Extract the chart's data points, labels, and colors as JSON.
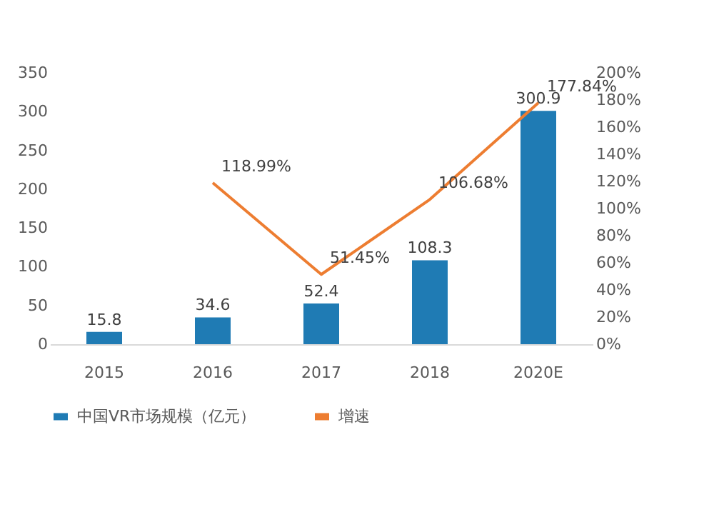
{
  "chart_data": {
    "type": "bar",
    "categories": [
      "2015",
      "2016",
      "2017",
      "2018",
      "2020E"
    ],
    "series": [
      {
        "name": "中国VR市场规模（亿元）",
        "color": "#1f7bb4",
        "values": [
          15.8,
          34.6,
          52.4,
          108.3,
          300.9
        ],
        "value_labels": [
          "15.8",
          "34.6",
          "52.4",
          "108.3",
          "300.9"
        ]
      },
      {
        "name": "增速",
        "type": "line",
        "axis": "y2",
        "color": "#ed7d31",
        "values": [
          null,
          118.99,
          51.45,
          106.68,
          177.84
        ],
        "value_labels": [
          null,
          "118.99%",
          "51.45%",
          "106.68%",
          "177.84%"
        ]
      }
    ],
    "ylim": [
      0,
      350
    ],
    "yticks": [
      0,
      50,
      100,
      150,
      200,
      250,
      300,
      350
    ],
    "y2lim": [
      0,
      200
    ],
    "y2ticks": [
      {
        "value": 0,
        "label": "0%"
      },
      {
        "value": 20,
        "label": "20%"
      },
      {
        "value": 40,
        "label": "40%"
      },
      {
        "value": 60,
        "label": "60%"
      },
      {
        "value": 80,
        "label": "80%"
      },
      {
        "value": 100,
        "label": "100%"
      },
      {
        "value": 120,
        "label": "120%"
      },
      {
        "value": 140,
        "label": "140%"
      },
      {
        "value": 160,
        "label": "160%"
      },
      {
        "value": 180,
        "label": "180%"
      },
      {
        "value": 200,
        "label": "200%"
      }
    ],
    "legend": "bottom",
    "marker": "none",
    "line_style": "solid"
  }
}
